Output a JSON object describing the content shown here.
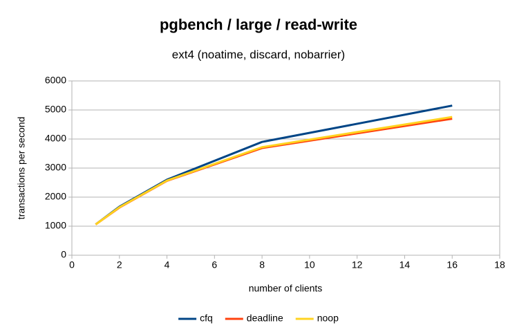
{
  "chart_data": {
    "type": "line",
    "title": "pgbench / large / read-write",
    "subtitle": "ext4 (noatime, discard, nobarrier)",
    "x_label": "number of clients",
    "y_label": "transactions per second",
    "x": [
      1,
      2,
      4,
      8,
      16
    ],
    "series": [
      {
        "name": "cfq",
        "color": "#004586",
        "values": [
          1060,
          1670,
          2600,
          3900,
          5150
        ]
      },
      {
        "name": "deadline",
        "color": "#ff420e",
        "values": [
          1060,
          1640,
          2560,
          3690,
          4700
        ]
      },
      {
        "name": "noop",
        "color": "#ffd320",
        "values": [
          1060,
          1650,
          2570,
          3720,
          4760
        ]
      }
    ],
    "xlim": [
      0,
      18
    ],
    "xticks": [
      0,
      2,
      4,
      6,
      8,
      10,
      12,
      14,
      16,
      18
    ],
    "ylim": [
      0,
      6000
    ],
    "yticks": [
      0,
      1000,
      2000,
      3000,
      4000,
      5000,
      6000
    ],
    "grid": true,
    "legend": "bottom"
  }
}
